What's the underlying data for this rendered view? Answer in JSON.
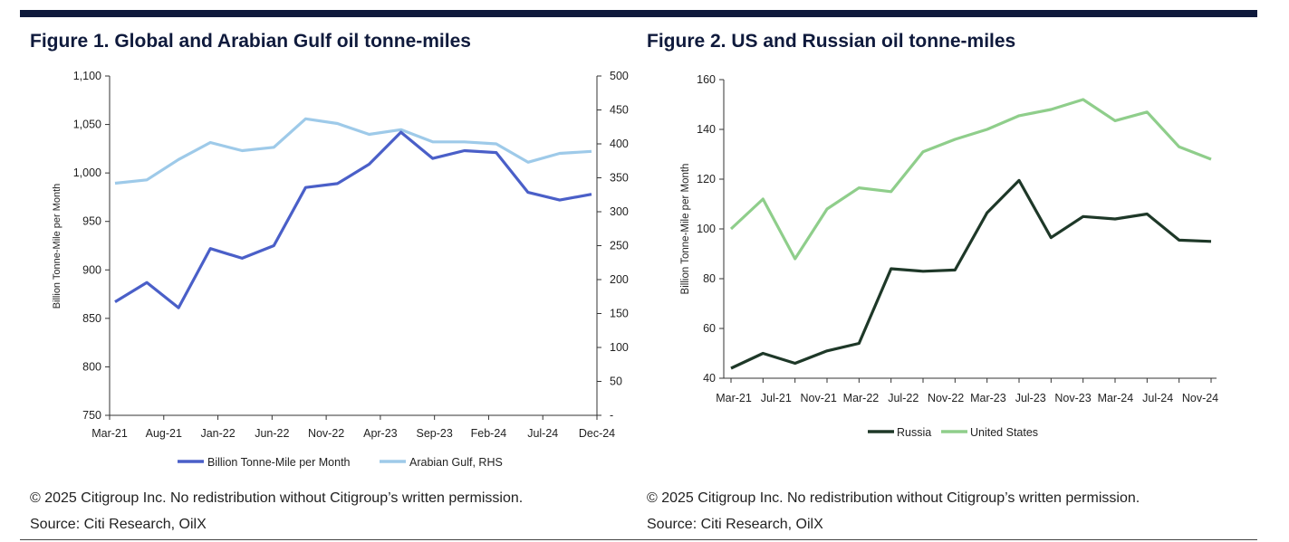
{
  "fig1": {
    "title": "Figure 1. Global and Arabian Gulf oil tonne-miles",
    "copyright": "© 2025 Citigroup Inc. No redistribution without Citigroup’s written permission.",
    "source": "Source: Citi Research, OilX"
  },
  "fig2": {
    "title": "Figure 2. US and Russian oil tonne-miles",
    "copyright": "© 2025 Citigroup Inc. No redistribution without Citigroup’s written permission.",
    "source": "Source: Citi Research, OilX"
  },
  "chart_data": [
    {
      "type": "line",
      "title": "Figure 1. Global and Arabian Gulf oil tonne-miles",
      "ylabel": "Billion Tonne-Mile per Month",
      "ylim": [
        750,
        1100
      ],
      "y2lim": [
        0,
        500
      ],
      "y_ticks": [
        "750",
        "800",
        "850",
        "900",
        "950",
        "1,000",
        "1,050",
        "1,100"
      ],
      "y2_ticks": [
        "-",
        "50",
        "100",
        "150",
        "200",
        "250",
        "300",
        "350",
        "400",
        "450",
        "500"
      ],
      "x_ticks": [
        "Mar-21",
        "Aug-21",
        "Jan-22",
        "Jun-22",
        "Nov-22",
        "Apr-23",
        "Sep-23",
        "Feb-24",
        "Jul-24",
        "Dec-24"
      ],
      "grid": false,
      "legend": "bottom",
      "series": [
        {
          "name": "Billion Tonne-Mile per Month",
          "axis": "left",
          "color": "#4a5fc8",
          "values": [
            867,
            887,
            861,
            922,
            912,
            925,
            985,
            989,
            1009,
            1042,
            1015,
            1023,
            1021,
            980,
            972,
            978
          ]
        },
        {
          "name": "Arabian Gulf, RHS",
          "axis": "right",
          "color": "#9ecae9",
          "values": [
            342,
            347,
            377,
            402,
            390,
            395,
            437,
            430,
            414,
            421,
            403,
            403,
            400,
            373,
            386,
            389
          ]
        }
      ]
    },
    {
      "type": "line",
      "title": "Figure 2. US and Russian oil tonne-miles",
      "ylabel": "Billion Tonne-Mile per Month",
      "ylim": [
        40,
        160
      ],
      "y_ticks": [
        "40",
        "60",
        "80",
        "100",
        "120",
        "140",
        "160"
      ],
      "x_ticks": [
        "Mar-21",
        "Jul-21",
        "Nov-21",
        "Mar-22",
        "Jul-22",
        "Nov-22",
        "Mar-23",
        "Jul-23",
        "Nov-23",
        "Mar-24",
        "Jul-24",
        "Nov-24"
      ],
      "grid": false,
      "legend": "bottom",
      "series": [
        {
          "name": "Russia",
          "color": "#1e3828",
          "values": [
            44,
            50,
            46,
            51,
            54,
            84,
            83,
            83.5,
            106.5,
            119.5,
            96.5,
            105,
            104,
            106,
            95.5,
            95
          ]
        },
        {
          "name": "United States",
          "color": "#8fce8b",
          "values": [
            100,
            112,
            88,
            108,
            116.5,
            115,
            131,
            136,
            140,
            145.5,
            148,
            152,
            143.5,
            147,
            133,
            128
          ]
        }
      ]
    }
  ]
}
